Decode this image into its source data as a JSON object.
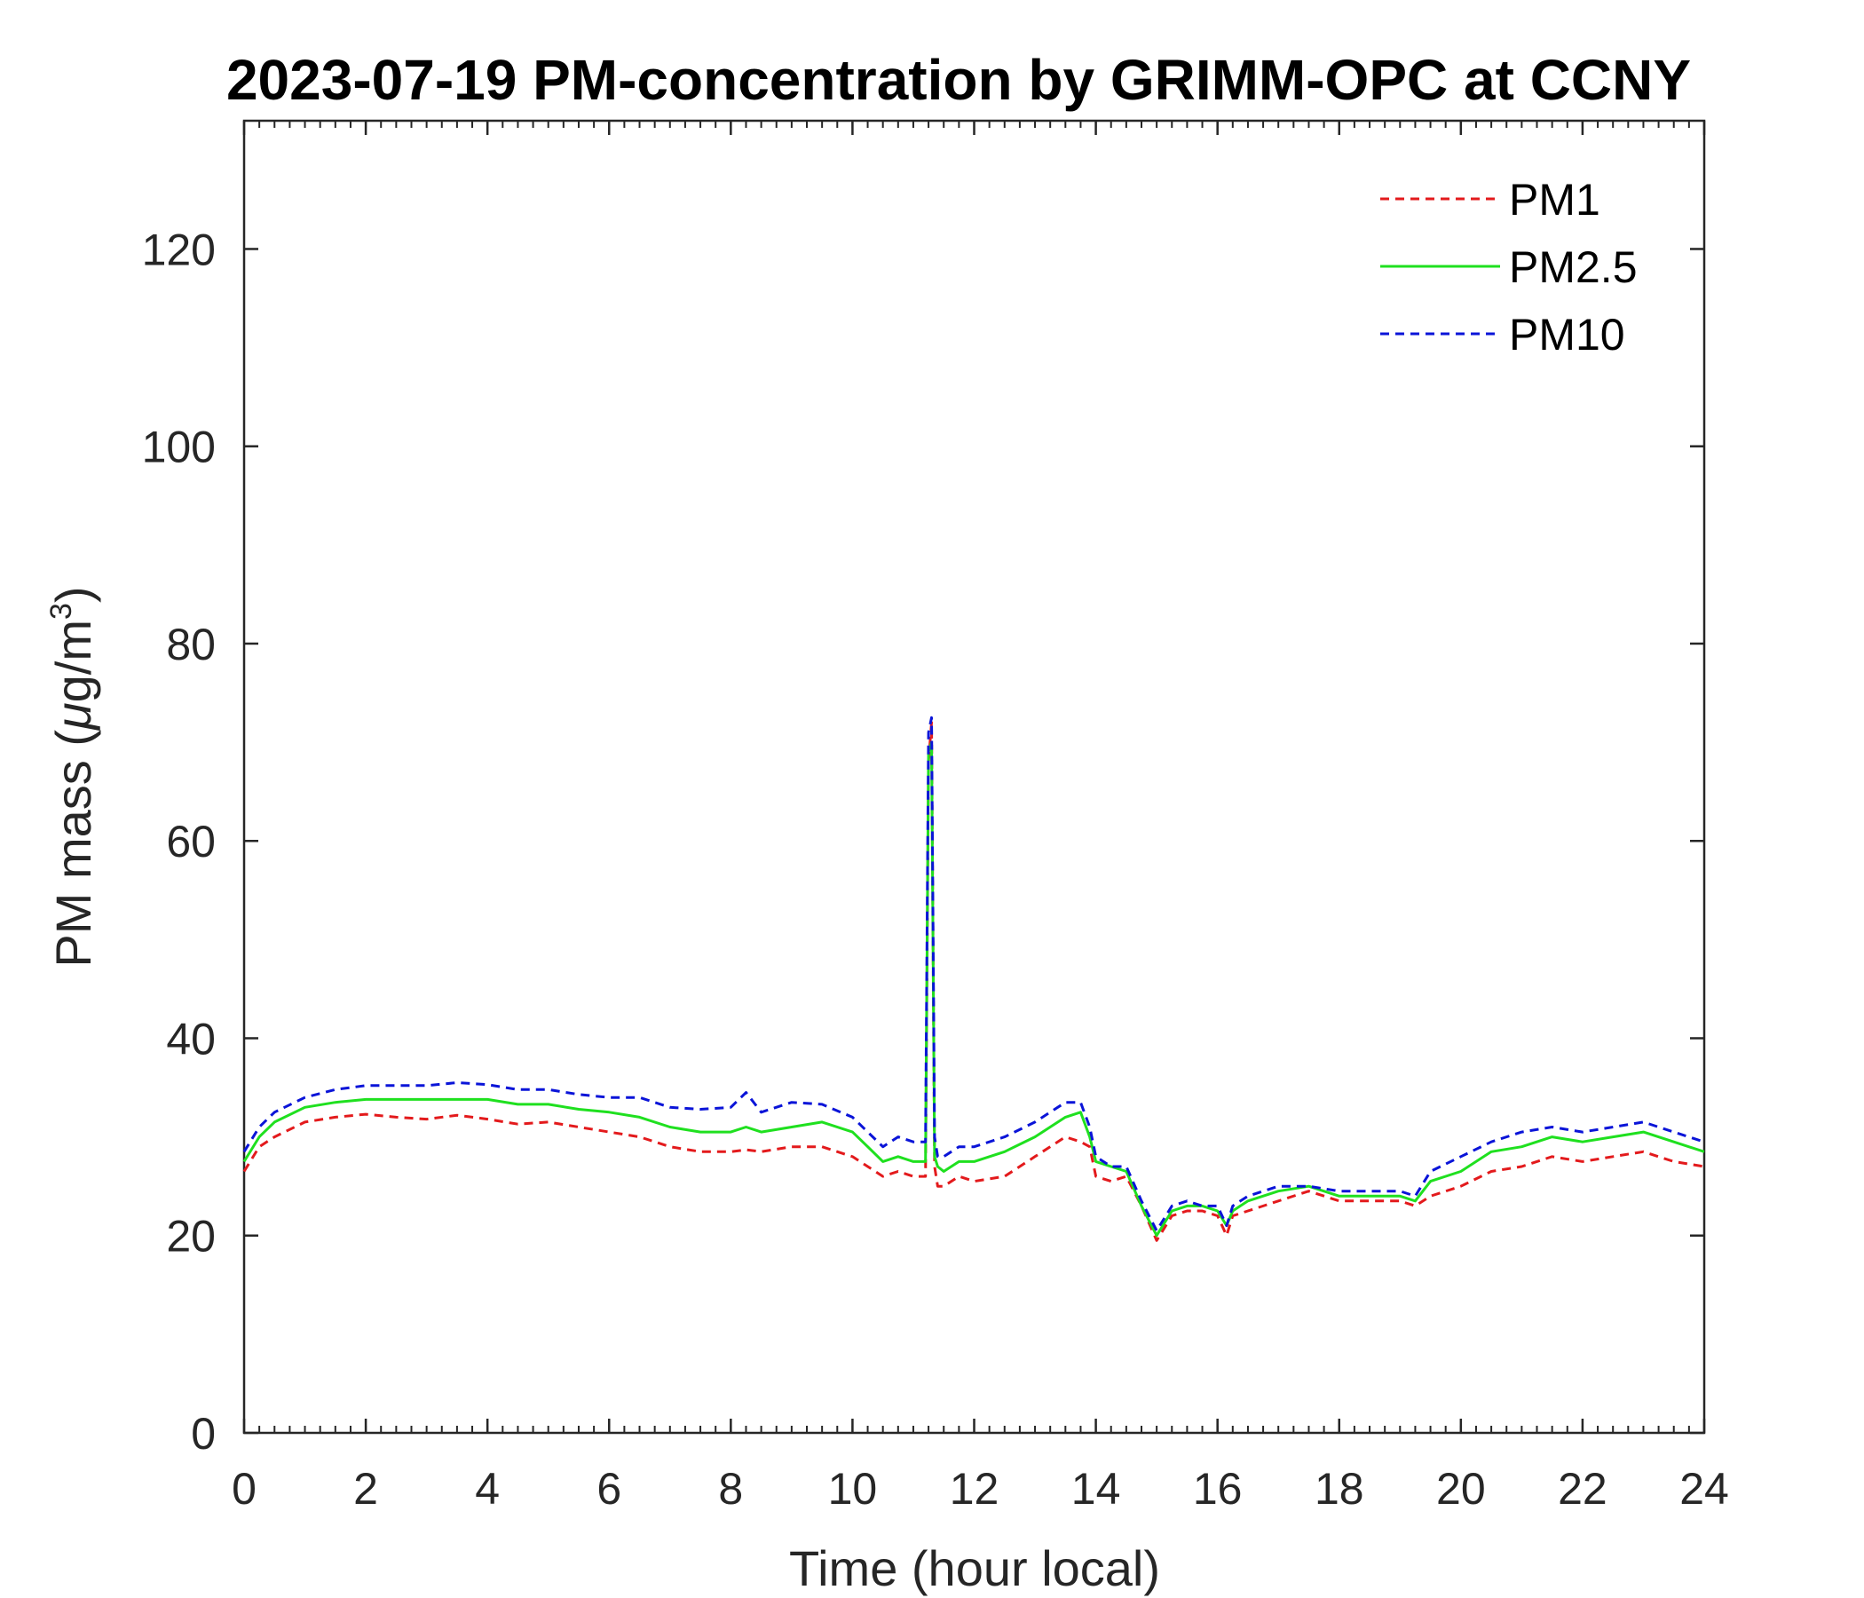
{
  "chart_data": {
    "type": "line",
    "title": "2023-07-19 PM-concentration by GRIMM-OPC at CCNY",
    "xlabel": "Time (hour local)",
    "ylabel_main": "PM mass (",
    "ylabel_mu": "μ",
    "ylabel_unit": "g/m",
    "ylabel_sup": "3",
    "ylabel_close": ")",
    "xlim": [
      0,
      24
    ],
    "ylim": [
      0,
      133
    ],
    "xticks": [
      0,
      2,
      4,
      6,
      8,
      10,
      12,
      14,
      16,
      18,
      20,
      22,
      24
    ],
    "yticks": [
      0,
      20,
      40,
      60,
      80,
      100,
      120
    ],
    "grid": false,
    "legend_position": "top-right",
    "x": [
      0,
      0.25,
      0.5,
      1,
      1.5,
      2,
      2.5,
      3,
      3.5,
      4,
      4.5,
      5,
      5.5,
      6,
      6.5,
      7,
      7.5,
      8,
      8.25,
      8.5,
      9,
      9.5,
      10,
      10.25,
      10.5,
      10.75,
      11,
      11.2,
      11.25,
      11.3,
      11.35,
      11.4,
      11.5,
      11.75,
      12,
      12.5,
      13,
      13.5,
      13.75,
      13.9,
      14,
      14.25,
      14.5,
      14.75,
      15,
      15.25,
      15.5,
      15.75,
      16,
      16.15,
      16.25,
      16.5,
      17,
      17.5,
      18,
      18.5,
      19,
      19.25,
      19.5,
      20,
      20.5,
      21,
      21.5,
      22,
      22.5,
      23,
      23.5,
      24
    ],
    "series": [
      {
        "name": "PM1",
        "color": "#e31a1c",
        "style": "dashed",
        "values": [
          26.5,
          29,
          30,
          31.5,
          32,
          32.3,
          32,
          31.8,
          32.2,
          31.8,
          31.3,
          31.5,
          31,
          30.5,
          30,
          29,
          28.5,
          28.5,
          28.7,
          28.5,
          29,
          29,
          28,
          27,
          26,
          26.5,
          26,
          26,
          68,
          72,
          27,
          25,
          25,
          26,
          25.5,
          26,
          28,
          30,
          29.5,
          29,
          26,
          25.5,
          26,
          23,
          19.5,
          22,
          22.5,
          22.5,
          22,
          20,
          22,
          22.5,
          23.5,
          24.5,
          23.5,
          23.5,
          23.5,
          23,
          24,
          25,
          26.5,
          27,
          28,
          27.5,
          28,
          28.5,
          27.5,
          27
        ]
      },
      {
        "name": "PM2.5",
        "color": "#1fe01f",
        "style": "solid",
        "values": [
          27.5,
          30,
          31.5,
          33,
          33.5,
          33.8,
          33.8,
          33.8,
          33.8,
          33.8,
          33.3,
          33.3,
          32.8,
          32.5,
          32,
          31,
          30.5,
          30.5,
          31,
          30.5,
          31,
          31.5,
          30.5,
          29,
          27.5,
          28,
          27.5,
          27.5,
          69,
          70,
          28,
          27,
          26.5,
          27.5,
          27.5,
          28.5,
          30,
          32,
          32.5,
          30,
          27.5,
          27,
          26.5,
          23,
          20,
          22.5,
          23,
          23,
          22.5,
          21,
          22.5,
          23.5,
          24.5,
          25,
          24,
          24,
          24,
          23.5,
          25.5,
          26.5,
          28.5,
          29,
          30,
          29.5,
          30,
          30.5,
          29.5,
          28.5
        ]
      },
      {
        "name": "PM10",
        "color": "#0a14d8",
        "style": "dashed",
        "values": [
          28.5,
          31,
          32.5,
          34,
          34.8,
          35.2,
          35.2,
          35.2,
          35.5,
          35.3,
          34.8,
          34.8,
          34.3,
          34,
          34,
          33,
          32.8,
          33,
          34.5,
          32.5,
          33.5,
          33.3,
          32,
          30.5,
          29,
          30,
          29.5,
          29.5,
          71,
          72.5,
          30,
          28,
          28,
          29,
          29,
          30,
          31.5,
          33.5,
          33.5,
          31,
          28,
          27,
          27,
          23.5,
          20.5,
          23,
          23.5,
          23,
          23,
          21,
          23,
          24,
          25,
          25,
          24.5,
          24.5,
          24.5,
          24,
          26.5,
          28,
          29.5,
          30.5,
          31,
          30.5,
          31,
          31.5,
          30.5,
          29.5
        ]
      }
    ]
  }
}
